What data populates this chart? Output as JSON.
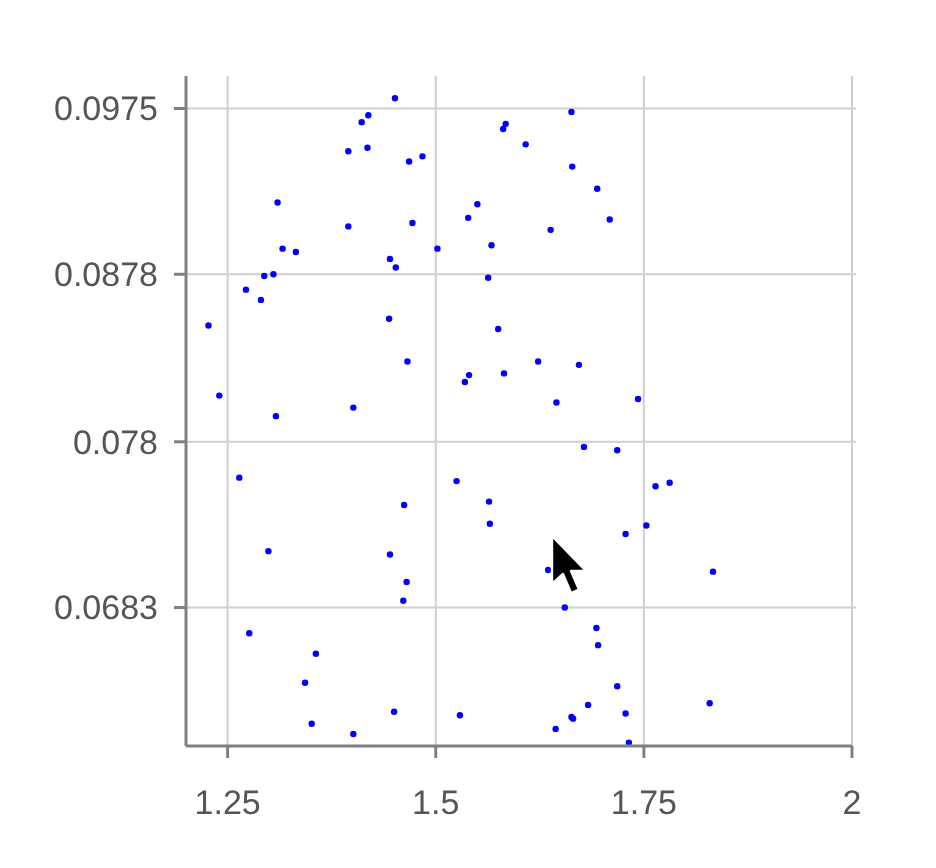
{
  "chart_data": {
    "type": "scatter",
    "xlim": [
      1.2,
      2
    ],
    "ylim": [
      0.0602,
      0.0994
    ],
    "xticks": [
      1.25,
      1.5,
      1.75,
      2
    ],
    "yticks": [
      0.0683,
      0.078,
      0.0878,
      0.0975
    ],
    "grid": true,
    "marker": "circle",
    "series": [
      {
        "color": "#0000ff",
        "x": [
          1.451,
          1.419,
          1.411,
          1.584,
          1.581,
          1.608,
          1.395,
          1.418,
          1.484,
          1.468,
          1.31,
          1.55,
          1.539,
          1.472,
          1.395,
          1.567,
          1.316,
          1.332,
          1.502,
          1.445,
          1.452,
          1.294,
          1.305,
          1.563,
          1.272,
          1.29,
          1.227,
          1.444,
          1.575,
          1.466,
          1.623,
          1.54,
          1.535,
          1.582,
          1.24,
          1.401,
          1.308,
          1.663,
          1.664,
          1.694,
          1.709,
          1.638,
          1.672,
          1.645,
          1.743,
          1.264,
          1.525,
          1.462,
          1.564,
          1.565,
          1.299,
          1.445,
          1.465,
          1.461,
          1.276,
          1.356,
          1.343,
          1.45,
          1.529,
          1.351,
          1.401,
          1.678,
          1.718,
          1.764,
          1.781,
          1.753,
          1.728,
          1.635,
          1.833,
          1.655,
          1.693,
          1.695,
          1.718,
          1.683,
          1.829,
          1.728,
          1.663,
          1.665,
          1.644,
          1.732
        ],
        "values": [
          0.0981,
          0.0971,
          0.0967,
          0.0966,
          0.0963,
          0.0954,
          0.095,
          0.0952,
          0.0947,
          0.0944,
          0.092,
          0.0919,
          0.0911,
          0.0908,
          0.0906,
          0.0895,
          0.0893,
          0.0891,
          0.0893,
          0.0887,
          0.0882,
          0.0877,
          0.0878,
          0.0876,
          0.0869,
          0.0863,
          0.0848,
          0.0852,
          0.0846,
          0.0827,
          0.0827,
          0.0819,
          0.0815,
          0.082,
          0.0807,
          0.08,
          0.0795,
          0.0973,
          0.0941,
          0.0928,
          0.091,
          0.0904,
          0.0825,
          0.0803,
          0.0805,
          0.0759,
          0.0757,
          0.0743,
          0.0745,
          0.0732,
          0.0716,
          0.0714,
          0.0698,
          0.0687,
          0.0668,
          0.0656,
          0.0639,
          0.0622,
          0.062,
          0.0615,
          0.0609,
          0.0777,
          0.0775,
          0.0754,
          0.0756,
          0.0731,
          0.0726,
          0.0705,
          0.0704,
          0.0683,
          0.0671,
          0.0661,
          0.0637,
          0.0626,
          0.0627,
          0.0621,
          0.0619,
          0.0618,
          0.0612,
          0.0604
        ]
      }
    ]
  }
}
